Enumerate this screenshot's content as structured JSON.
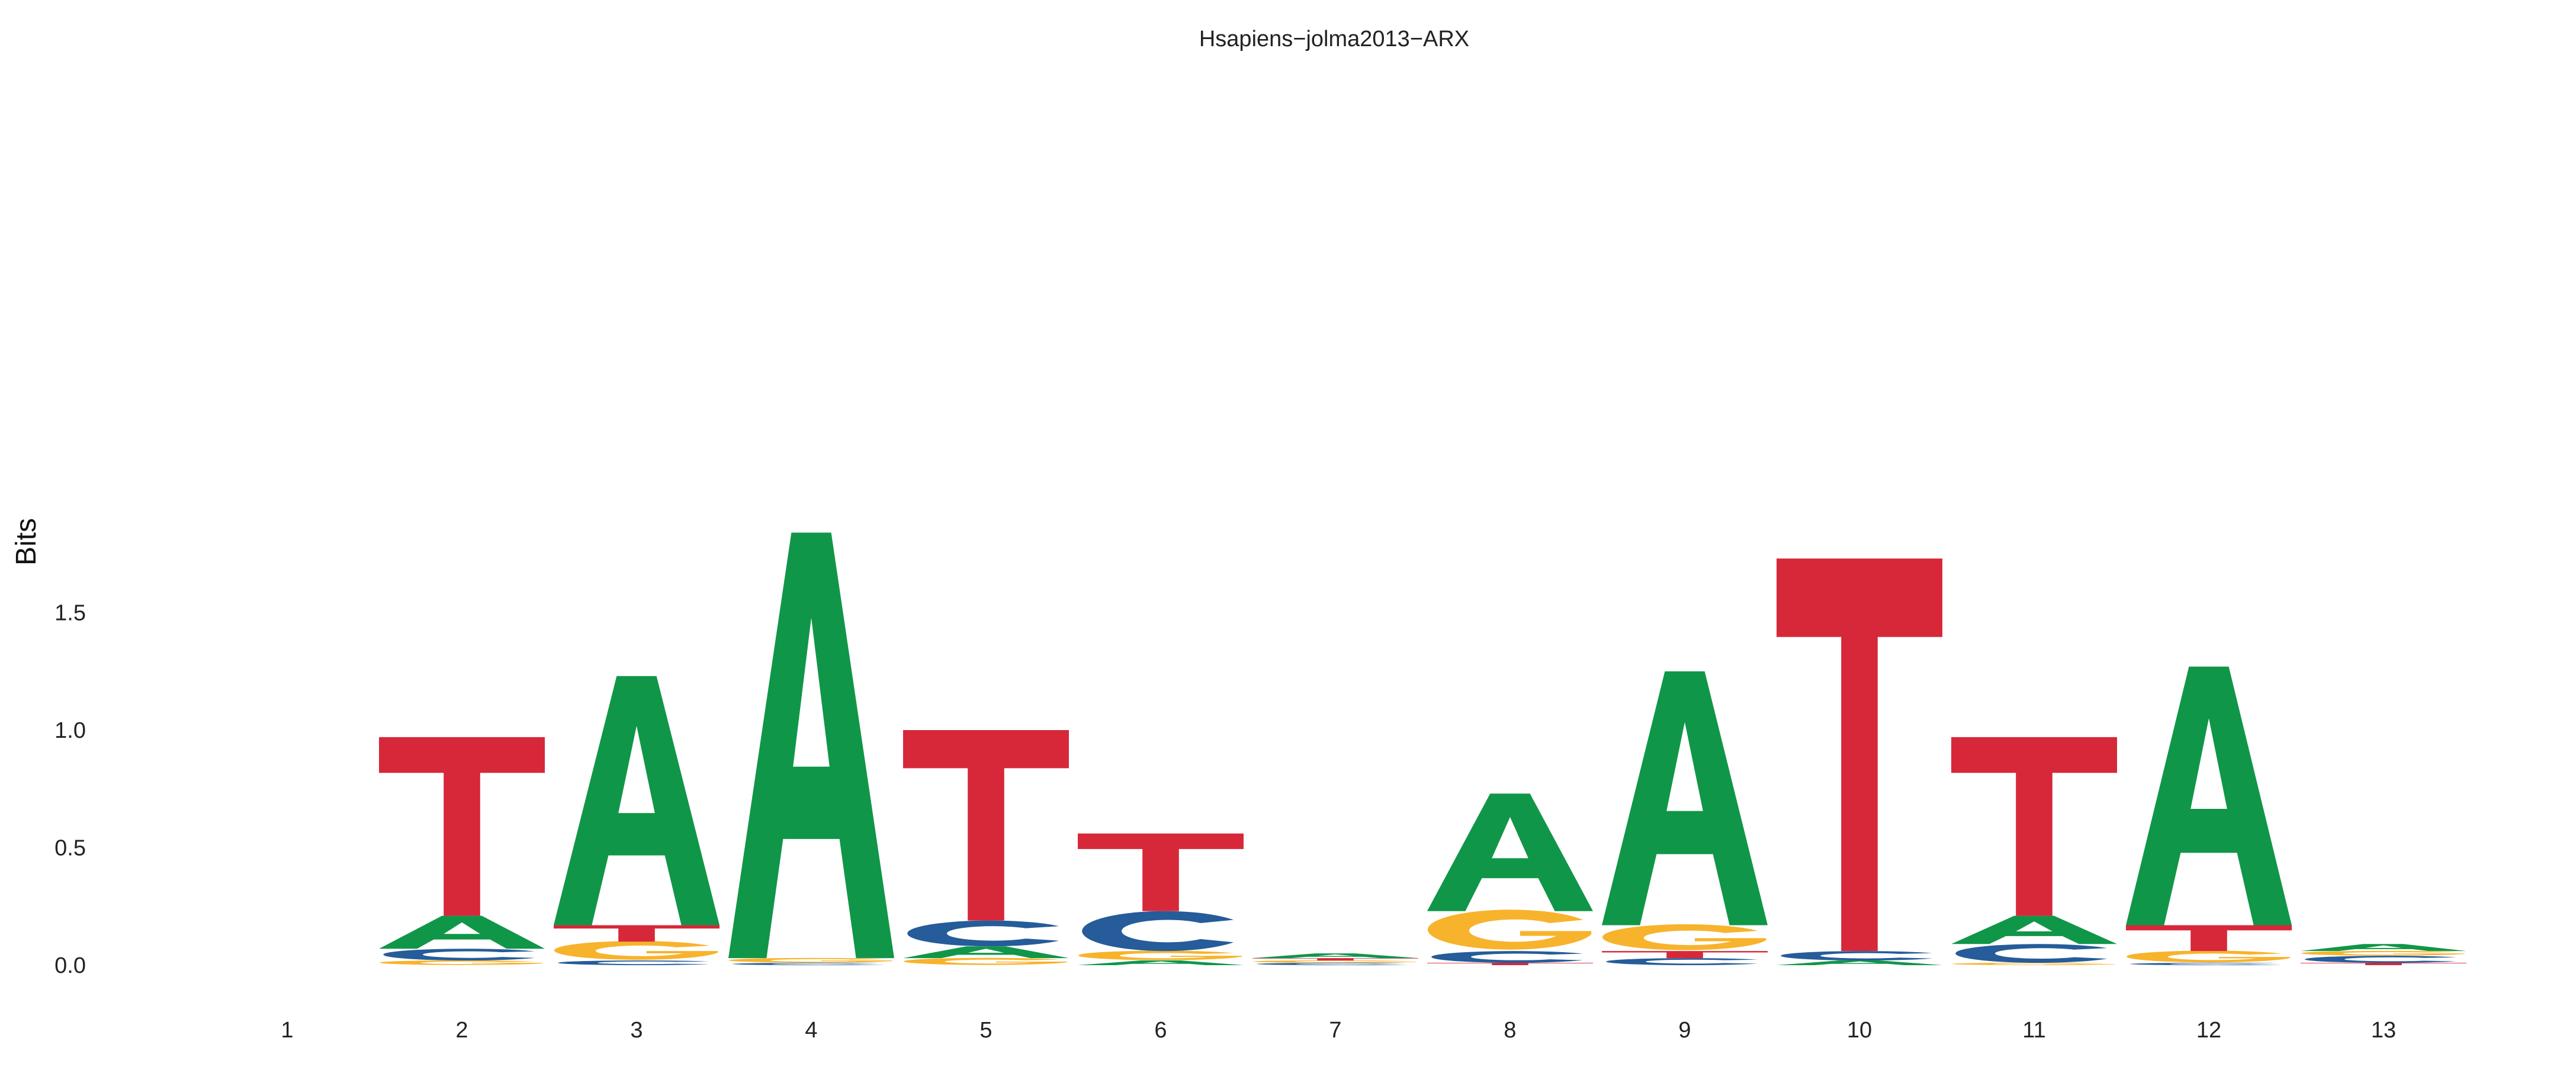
{
  "chart_data": {
    "type": "sequence-logo",
    "title": "Hsapiens−jolma2013−ARX",
    "xlabel": "",
    "ylabel": "Bits",
    "ylim": [
      0,
      1.85
    ],
    "y_ticks": [
      {
        "value": 0.0,
        "label": "0.0"
      },
      {
        "value": 0.5,
        "label": "0.5"
      },
      {
        "value": 1.0,
        "label": "1.0"
      },
      {
        "value": 1.5,
        "label": "1.5"
      }
    ],
    "grid": false,
    "colors": {
      "A": "#109648",
      "C": "#255C99",
      "G": "#F7B32B",
      "T": "#D62839"
    },
    "positions": [
      {
        "label": "1",
        "stack": []
      },
      {
        "label": "2",
        "stack": [
          {
            "base": "G",
            "height": 0.02
          },
          {
            "base": "C",
            "height": 0.05
          },
          {
            "base": "A",
            "height": 0.14
          },
          {
            "base": "T",
            "height": 0.76
          }
        ]
      },
      {
        "label": "3",
        "stack": [
          {
            "base": "C",
            "height": 0.02
          },
          {
            "base": "G",
            "height": 0.08
          },
          {
            "base": "T",
            "height": 0.07
          },
          {
            "base": "A",
            "height": 1.06
          }
        ]
      },
      {
        "label": "4",
        "stack": [
          {
            "base": "C",
            "height": 0.01
          },
          {
            "base": "G",
            "height": 0.02
          },
          {
            "base": "A",
            "height": 1.81
          }
        ]
      },
      {
        "label": "5",
        "stack": [
          {
            "base": "G",
            "height": 0.03
          },
          {
            "base": "A",
            "height": 0.05
          },
          {
            "base": "C",
            "height": 0.11
          },
          {
            "base": "T",
            "height": 0.81
          }
        ]
      },
      {
        "label": "6",
        "stack": [
          {
            "base": "A",
            "height": 0.02
          },
          {
            "base": "G",
            "height": 0.04
          },
          {
            "base": "C",
            "height": 0.17
          },
          {
            "base": "T",
            "height": 0.33
          }
        ]
      },
      {
        "label": "7",
        "stack": [
          {
            "base": "C",
            "height": 0.01
          },
          {
            "base": "G",
            "height": 0.01
          },
          {
            "base": "T",
            "height": 0.01
          },
          {
            "base": "A",
            "height": 0.02
          }
        ]
      },
      {
        "label": "8",
        "stack": [
          {
            "base": "T",
            "height": 0.01
          },
          {
            "base": "C",
            "height": 0.05
          },
          {
            "base": "G",
            "height": 0.17
          },
          {
            "base": "A",
            "height": 0.5
          }
        ]
      },
      {
        "label": "9",
        "stack": [
          {
            "base": "C",
            "height": 0.03
          },
          {
            "base": "T",
            "height": 0.03
          },
          {
            "base": "G",
            "height": 0.11
          },
          {
            "base": "A",
            "height": 1.08
          }
        ]
      },
      {
        "label": "10",
        "stack": [
          {
            "base": "A",
            "height": 0.02
          },
          {
            "base": "C",
            "height": 0.04
          },
          {
            "base": "T",
            "height": 1.67
          }
        ]
      },
      {
        "label": "11",
        "stack": [
          {
            "base": "G",
            "height": 0.01
          },
          {
            "base": "C",
            "height": 0.08
          },
          {
            "base": "A",
            "height": 0.12
          },
          {
            "base": "T",
            "height": 0.76
          }
        ]
      },
      {
        "label": "12",
        "stack": [
          {
            "base": "C",
            "height": 0.01
          },
          {
            "base": "G",
            "height": 0.05
          },
          {
            "base": "T",
            "height": 0.11
          },
          {
            "base": "A",
            "height": 1.1
          }
        ]
      },
      {
        "label": "13",
        "stack": [
          {
            "base": "T",
            "height": 0.01
          },
          {
            "base": "C",
            "height": 0.03
          },
          {
            "base": "G",
            "height": 0.02
          },
          {
            "base": "A",
            "height": 0.03
          }
        ]
      }
    ]
  }
}
